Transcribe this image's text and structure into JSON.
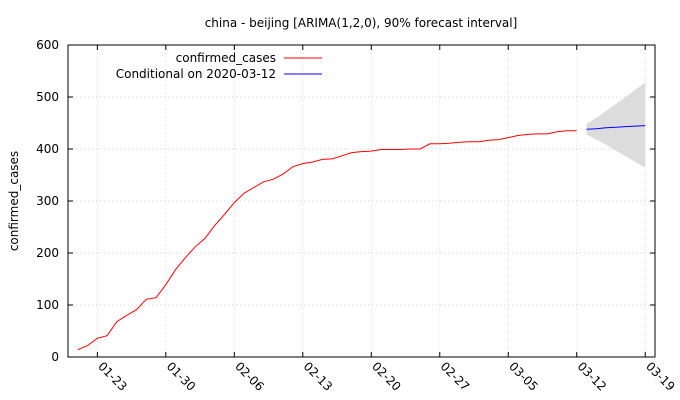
{
  "chart_data": {
    "type": "line",
    "title": "china - beijing [ARIMA(1,2,0), 90% forecast interval]",
    "xlabel": "",
    "ylabel": "confirmed_cases",
    "ylim": [
      0,
      600
    ],
    "yticks": [
      0,
      100,
      200,
      300,
      400,
      500,
      600
    ],
    "xlim": [
      "2020-01-20",
      "2020-03-20"
    ],
    "xticks": [
      "01-23",
      "01-30",
      "02-06",
      "02-13",
      "02-20",
      "02-27",
      "03-05",
      "03-12",
      "03-19"
    ],
    "grid": true,
    "legend_position": "top-left",
    "series": [
      {
        "name": "confirmed_cases",
        "color": "#ff0000",
        "x": [
          "2020-01-21",
          "2020-01-22",
          "2020-01-23",
          "2020-01-24",
          "2020-01-25",
          "2020-01-26",
          "2020-01-27",
          "2020-01-28",
          "2020-01-29",
          "2020-01-30",
          "2020-01-31",
          "2020-02-01",
          "2020-02-02",
          "2020-02-03",
          "2020-02-04",
          "2020-02-05",
          "2020-02-06",
          "2020-02-07",
          "2020-02-08",
          "2020-02-09",
          "2020-02-10",
          "2020-02-11",
          "2020-02-12",
          "2020-02-13",
          "2020-02-14",
          "2020-02-15",
          "2020-02-16",
          "2020-02-17",
          "2020-02-18",
          "2020-02-19",
          "2020-02-20",
          "2020-02-21",
          "2020-02-22",
          "2020-02-23",
          "2020-02-24",
          "2020-02-25",
          "2020-02-26",
          "2020-02-27",
          "2020-02-28",
          "2020-02-29",
          "2020-03-01",
          "2020-03-02",
          "2020-03-03",
          "2020-03-04",
          "2020-03-05",
          "2020-03-06",
          "2020-03-07",
          "2020-03-08",
          "2020-03-09",
          "2020-03-10",
          "2020-03-11",
          "2020-03-12"
        ],
        "values": [
          14,
          22,
          36,
          41,
          68,
          80,
          91,
          111,
          114,
          139,
          168,
          191,
          212,
          228,
          253,
          274,
          297,
          315,
          326,
          337,
          342,
          352,
          366,
          372,
          375,
          380,
          381,
          387,
          393,
          395,
          396,
          399,
          399,
          399,
          400,
          400,
          410,
          410,
          411,
          413,
          414,
          414,
          417,
          418,
          422,
          426,
          428,
          429,
          429,
          433,
          435,
          435
        ]
      },
      {
        "name": "Conditional on 2020-03-12",
        "color": "#0000ff",
        "x": [
          "2020-03-13",
          "2020-03-14",
          "2020-03-15",
          "2020-03-16",
          "2020-03-17",
          "2020-03-18",
          "2020-03-19"
        ],
        "values": [
          438,
          439,
          441,
          442,
          443,
          444,
          445
        ],
        "lower": [
          428,
          418,
          408,
          397,
          386,
          375,
          364
        ],
        "upper": [
          448,
          460,
          473,
          487,
          500,
          514,
          528
        ]
      }
    ]
  }
}
